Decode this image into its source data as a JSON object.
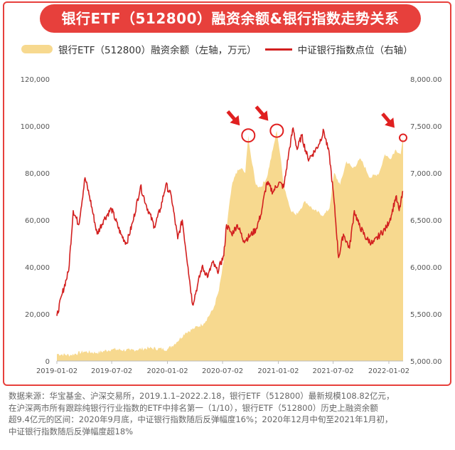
{
  "header": {
    "title": "银行ETF（512800）融资余额&银行指数走势关系"
  },
  "legend": {
    "area_label": "银行ETF（512800）融资余额（左轴，万元）",
    "line_label": "中证银行指数点位（右轴）"
  },
  "footer": {
    "lines": [
      "数据来源：华宝基金、沪深交易所，2019.1.1–2022.2.18，银行ETF（512800）最新规模108.82亿元，",
      "在沪深两市所有跟踪纯银行行业指数的ETF中排名第一（1/10），银行ETF（512800）历史上融资余额",
      "超9.4亿元的区间：2020年9月底，中证银行指数随后反弹幅度16%；2020年12月中旬至2021年1月初，",
      "中证银行指数随后反弹幅度超18%"
    ]
  },
  "colors": {
    "accent": "#e7403c",
    "area": "#f7d98f",
    "line": "#d21f1f",
    "marker": "#e02020"
  },
  "chart_data": {
    "type": "area+line",
    "x_tick_labels": [
      "2019-01-02",
      "2019-07-02",
      "2020-01-02",
      "2020-07-02",
      "2021-01-02",
      "2021-07-02",
      "2022-01-02"
    ],
    "x_range": [
      "2019-01-02",
      "2022-02-18"
    ],
    "left_axis": {
      "ticks": [
        "0",
        "20,000",
        "40,000",
        "60,000",
        "80,000",
        "100,000",
        "120,000"
      ],
      "range": [
        0,
        120000
      ]
    },
    "right_axis": {
      "ticks": [
        "5,000.00",
        "5,500.00",
        "6,000.00",
        "6,500.00",
        "7,000.00",
        "7,500.00",
        "8,000.00"
      ],
      "range": [
        5000,
        8000
      ]
    },
    "series": [
      {
        "name": "银行ETF（512800）融资余额（左轴，万元）",
        "kind": "area",
        "axis": "left",
        "points": [
          [
            "2019-01-02",
            3000
          ],
          [
            "2019-02-15",
            2500
          ],
          [
            "2019-04-01",
            4000
          ],
          [
            "2019-05-15",
            3500
          ],
          [
            "2019-07-01",
            5000
          ],
          [
            "2019-09-01",
            4500
          ],
          [
            "2019-11-01",
            5500
          ],
          [
            "2020-01-02",
            5000
          ],
          [
            "2020-02-01",
            8000
          ],
          [
            "2020-03-01",
            12000
          ],
          [
            "2020-04-01",
            14000
          ],
          [
            "2020-05-01",
            16000
          ],
          [
            "2020-06-01",
            22000
          ],
          [
            "2020-06-20",
            30000
          ],
          [
            "2020-07-05",
            42000
          ],
          [
            "2020-07-20",
            62000
          ],
          [
            "2020-08-01",
            74000
          ],
          [
            "2020-08-15",
            80000
          ],
          [
            "2020-09-01",
            82000
          ],
          [
            "2020-09-15",
            80000
          ],
          [
            "2020-09-25",
            96000
          ],
          [
            "2020-10-05",
            86000
          ],
          [
            "2020-10-20",
            75000
          ],
          [
            "2020-11-05",
            74000
          ],
          [
            "2020-11-25",
            78000
          ],
          [
            "2020-12-15",
            90000
          ],
          [
            "2020-12-28",
            98000
          ],
          [
            "2021-01-08",
            88000
          ],
          [
            "2021-01-20",
            75000
          ],
          [
            "2021-02-10",
            65000
          ],
          [
            "2021-03-01",
            62000
          ],
          [
            "2021-04-01",
            68000
          ],
          [
            "2021-05-01",
            64000
          ],
          [
            "2021-06-01",
            62000
          ],
          [
            "2021-06-20",
            65000
          ],
          [
            "2021-07-05",
            80000
          ],
          [
            "2021-07-25",
            75000
          ],
          [
            "2021-08-15",
            85000
          ],
          [
            "2021-09-05",
            82000
          ],
          [
            "2021-10-01",
            86000
          ],
          [
            "2021-11-01",
            78000
          ],
          [
            "2021-12-01",
            80000
          ],
          [
            "2021-12-20",
            88000
          ],
          [
            "2022-01-05",
            86000
          ],
          [
            "2022-01-25",
            90000
          ],
          [
            "2022-02-10",
            88000
          ],
          [
            "2022-02-18",
            95000
          ]
        ]
      },
      {
        "name": "中证银行指数点位（右轴）",
        "kind": "line",
        "axis": "right",
        "points": [
          [
            "2019-01-02",
            5480
          ],
          [
            "2019-01-20",
            5720
          ],
          [
            "2019-02-10",
            5960
          ],
          [
            "2019-02-25",
            6600
          ],
          [
            "2019-03-15",
            6450
          ],
          [
            "2019-04-05",
            6950
          ],
          [
            "2019-04-20",
            6750
          ],
          [
            "2019-05-15",
            6350
          ],
          [
            "2019-06-05",
            6500
          ],
          [
            "2019-07-01",
            6620
          ],
          [
            "2019-08-01",
            6350
          ],
          [
            "2019-08-20",
            6250
          ],
          [
            "2019-09-10",
            6480
          ],
          [
            "2019-10-05",
            6860
          ],
          [
            "2019-10-25",
            6650
          ],
          [
            "2019-11-20",
            6430
          ],
          [
            "2019-12-10",
            6620
          ],
          [
            "2019-12-28",
            6880
          ],
          [
            "2020-01-15",
            6750
          ],
          [
            "2020-02-05",
            6300
          ],
          [
            "2020-02-20",
            6500
          ],
          [
            "2020-03-10",
            6000
          ],
          [
            "2020-03-25",
            5600
          ],
          [
            "2020-04-10",
            5800
          ],
          [
            "2020-04-25",
            6000
          ],
          [
            "2020-05-15",
            5900
          ],
          [
            "2020-05-30",
            6050
          ],
          [
            "2020-06-15",
            5950
          ],
          [
            "2020-07-06",
            6120
          ],
          [
            "2020-07-15",
            6450
          ],
          [
            "2020-08-01",
            6350
          ],
          [
            "2020-08-20",
            6450
          ],
          [
            "2020-09-10",
            6280
          ],
          [
            "2020-09-30",
            6330
          ],
          [
            "2020-10-20",
            6400
          ],
          [
            "2020-11-05",
            6550
          ],
          [
            "2020-11-25",
            6900
          ],
          [
            "2020-12-15",
            6800
          ],
          [
            "2021-01-04",
            6900
          ],
          [
            "2021-01-20",
            6850
          ],
          [
            "2021-02-05",
            7200
          ],
          [
            "2021-02-20",
            7480
          ],
          [
            "2021-03-05",
            7250
          ],
          [
            "2021-03-20",
            7400
          ],
          [
            "2021-04-10",
            7150
          ],
          [
            "2021-04-25",
            7200
          ],
          [
            "2021-05-15",
            7300
          ],
          [
            "2021-06-01",
            7450
          ],
          [
            "2021-06-20",
            7180
          ],
          [
            "2021-07-05",
            6700
          ],
          [
            "2021-07-20",
            6100
          ],
          [
            "2021-08-05",
            6350
          ],
          [
            "2021-08-25",
            6200
          ],
          [
            "2021-09-10",
            6600
          ],
          [
            "2021-09-25",
            6450
          ],
          [
            "2021-10-20",
            6300
          ],
          [
            "2021-11-10",
            6250
          ],
          [
            "2021-12-05",
            6350
          ],
          [
            "2021-12-25",
            6420
          ],
          [
            "2022-01-10",
            6550
          ],
          [
            "2022-01-25",
            6750
          ],
          [
            "2022-02-05",
            6600
          ],
          [
            "2022-02-18",
            6800
          ]
        ]
      }
    ],
    "highlights": [
      {
        "series": "银行ETF（512800）融资余额（左轴，万元）",
        "date": "2020-09-25",
        "value": 96000
      },
      {
        "series": "银行ETF（512800）融资余额（左轴，万元）",
        "date": "2020-12-28",
        "value": 98000
      },
      {
        "series": "银行ETF（512800）融资余额（左轴，万元）",
        "date": "2022-02-18",
        "value": 95000
      }
    ],
    "grid": false
  }
}
